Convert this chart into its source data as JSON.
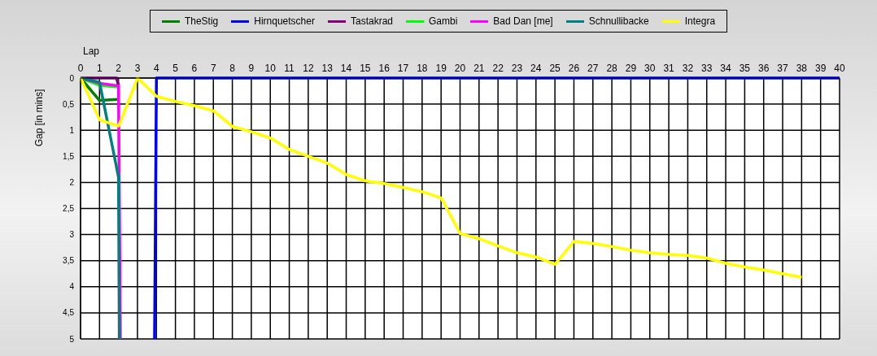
{
  "chart_data": {
    "type": "line",
    "xlabel": "Lap",
    "ylabel": "Gap [in mins]",
    "xlim": [
      0,
      40
    ],
    "xticks": [
      0,
      1,
      2,
      3,
      4,
      5,
      6,
      7,
      8,
      9,
      10,
      11,
      12,
      13,
      14,
      15,
      16,
      17,
      18,
      19,
      20,
      21,
      22,
      23,
      24,
      25,
      26,
      27,
      28,
      29,
      30,
      31,
      32,
      33,
      34,
      35,
      36,
      37,
      38,
      39,
      40
    ],
    "ylim": [
      5,
      0
    ],
    "yticks": [
      0,
      {
        "value": 0.5,
        "label": "0,5"
      },
      1,
      {
        "value": 1.5,
        "label": "1,5"
      },
      2,
      {
        "value": 2.5,
        "label": "2,5"
      },
      3,
      {
        "value": 3.5,
        "label": "3,5"
      },
      4,
      {
        "value": 4.5,
        "label": "4,5"
      },
      5
    ],
    "grid": true,
    "legend": "top",
    "marker": "none",
    "line_style": "solid",
    "series": [
      {
        "name": "TheStig",
        "color": "#008000",
        "x": [
          0,
          1,
          2
        ],
        "values": [
          0,
          0.43,
          0.41
        ]
      },
      {
        "name": "Hirnquetscher",
        "color": "#0000ff",
        "x": [
          3.9,
          4,
          40
        ],
        "values": [
          5,
          0,
          0
        ]
      },
      {
        "name": "Tastakrad",
        "color": "#800080",
        "x": [
          0,
          1,
          1.9,
          2
        ],
        "values": [
          0,
          0,
          0,
          0.15
        ]
      },
      {
        "name": "Gambi",
        "color": "#00ff00",
        "x": [
          0,
          1,
          2
        ],
        "values": [
          0,
          0.14,
          0.17
        ]
      },
      {
        "name": "Bad Dan [me]",
        "color": "#ff00ff",
        "x": [
          0,
          1,
          2,
          2.1
        ],
        "values": [
          0,
          0.1,
          0.15,
          5
        ]
      },
      {
        "name": "Schnullibacke",
        "color": "#008080",
        "x": [
          0,
          1,
          2,
          2.05
        ],
        "values": [
          0,
          0.08,
          1.9,
          5
        ]
      },
      {
        "name": "Integra",
        "color": "#ffff00",
        "x": [
          0,
          1,
          2,
          3,
          4,
          5,
          6,
          7,
          8,
          9,
          10,
          11,
          12,
          13,
          14,
          15,
          16,
          17,
          18,
          19,
          20,
          21,
          22,
          23,
          24,
          25,
          26,
          27,
          28,
          29,
          30,
          31,
          32,
          33,
          34,
          35,
          36,
          37,
          38
        ],
        "values": [
          0,
          0.8,
          0.92,
          0,
          0.35,
          0.45,
          0.53,
          0.63,
          0.93,
          1.03,
          1.15,
          1.37,
          1.5,
          1.63,
          1.85,
          1.97,
          2.02,
          2.1,
          2.18,
          2.3,
          2.98,
          3.08,
          3.22,
          3.35,
          3.43,
          3.57,
          3.13,
          3.17,
          3.23,
          3.3,
          3.35,
          3.38,
          3.4,
          3.45,
          3.55,
          3.62,
          3.68,
          3.75,
          3.82
        ]
      }
    ]
  }
}
